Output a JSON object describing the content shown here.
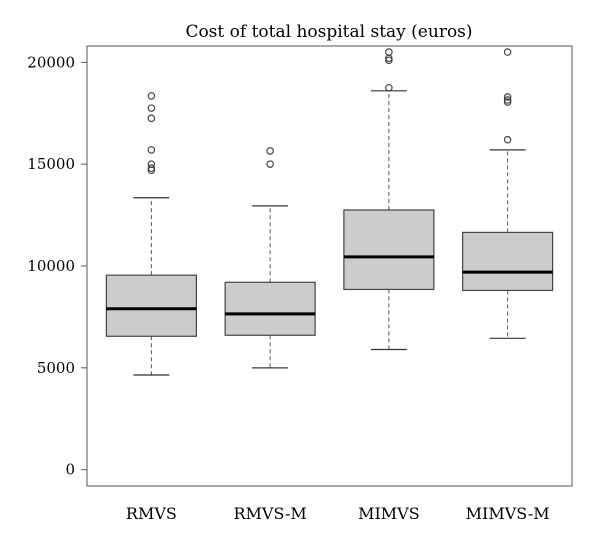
{
  "chart_data": {
    "type": "boxplot",
    "title": "Cost of total hospital stay (euros)",
    "xlabel": "",
    "ylabel": "",
    "ylim": [
      -800,
      20800
    ],
    "yticks": [
      0,
      5000,
      10000,
      15000,
      20000
    ],
    "ytick_labels": [
      "0",
      "5000",
      "10000",
      "15000",
      "20000"
    ],
    "grid": false,
    "legend": "none",
    "box_fill": "#cccccc",
    "categories": [
      "RMVS",
      "RMVS-M",
      "MIMVS",
      "MIMVS-M"
    ],
    "boxes": [
      {
        "whisker_low": 4650,
        "q1": 6550,
        "median": 7900,
        "q3": 9550,
        "whisker_high": 13350,
        "outliers": [
          14700,
          14800,
          15000,
          15700,
          17250,
          17750,
          18350
        ]
      },
      {
        "whisker_low": 5000,
        "q1": 6600,
        "median": 7650,
        "q3": 9200,
        "whisker_high": 12950,
        "outliers": [
          15000,
          15650
        ]
      },
      {
        "whisker_low": 5900,
        "q1": 8850,
        "median": 10450,
        "q3": 12750,
        "whisker_high": 18600,
        "outliers": [
          18750,
          20100,
          20200,
          20500
        ]
      },
      {
        "whisker_low": 6450,
        "q1": 8800,
        "median": 9700,
        "q3": 11650,
        "whisker_high": 15700,
        "outliers": [
          16200,
          18050,
          18150,
          18300,
          20500
        ]
      }
    ]
  }
}
